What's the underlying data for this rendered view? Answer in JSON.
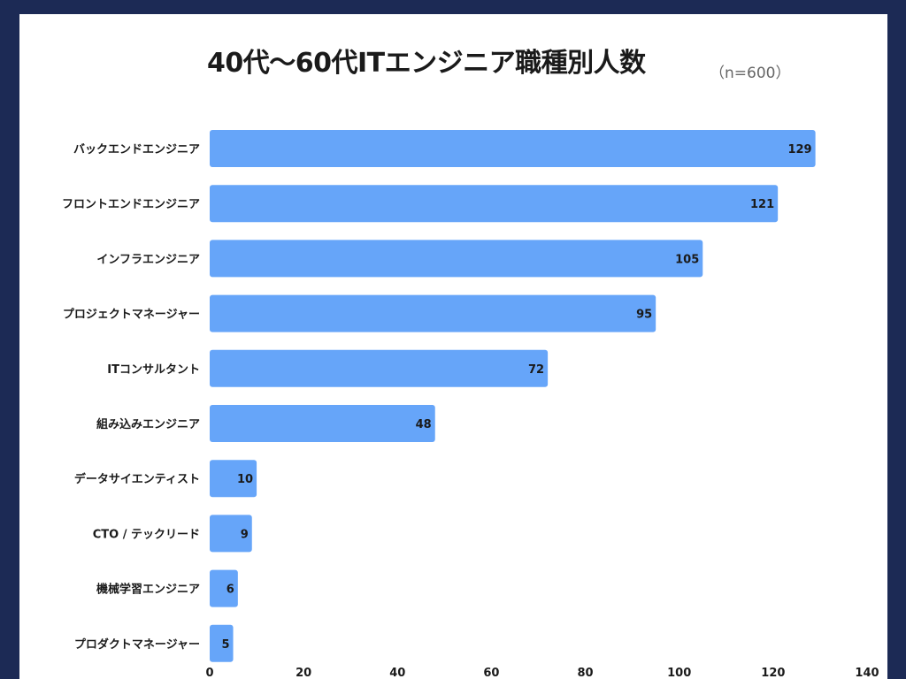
{
  "chart_data": {
    "type": "bar",
    "orientation": "horizontal",
    "title": "40代〜60代ITエンジニア職種別人数",
    "subtitle": "（n=600）",
    "categories": [
      "バックエンドエンジニア",
      "フロントエンドエンジニア",
      "インフラエンジニア",
      "プロジェクトマネージャー",
      "ITコンサルタント",
      "組み込みエンジニア",
      "データサイエンティスト",
      "CTO / テックリード",
      "機械学習エンジニア",
      "プロダクトマネージャー"
    ],
    "values": [
      129,
      121,
      105,
      95,
      72,
      48,
      10,
      9,
      6,
      5
    ],
    "xlim": [
      0,
      140
    ],
    "xticks": [
      0,
      20,
      40,
      60,
      80,
      100,
      120,
      140
    ],
    "xlabel": "",
    "ylabel": "",
    "grid": false,
    "colors": {
      "bar": "#66a5f9",
      "background": "#1c2a55",
      "card": "#ffffff"
    }
  }
}
